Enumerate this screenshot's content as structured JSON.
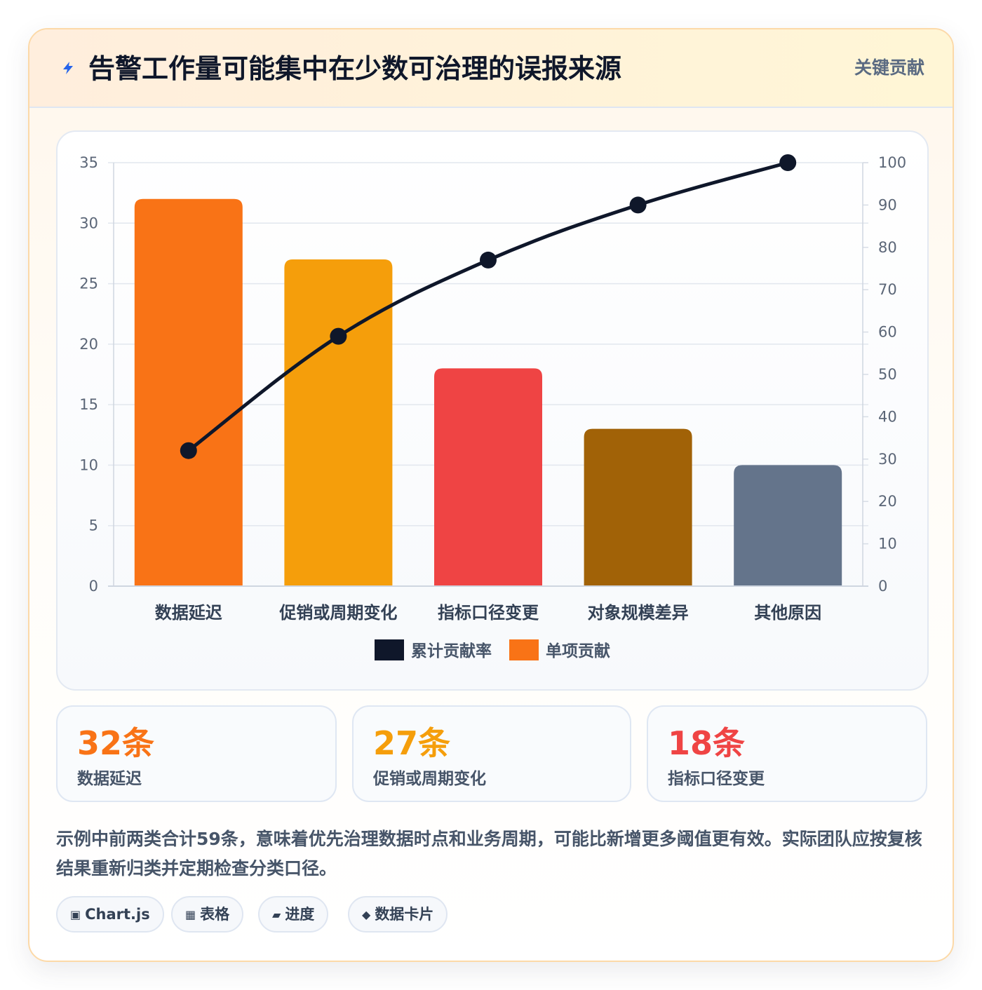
{
  "header": {
    "title": "告警工作量可能集中在少数可治理的误报来源",
    "badge": "关键贡献",
    "icon": "lightning-icon"
  },
  "chart_data": {
    "type": "bar",
    "categories": [
      "数据延迟",
      "促销或周期变化",
      "指标口径变更",
      "对象规模差异",
      "其他原因"
    ],
    "series": [
      {
        "name": "单项贡献",
        "type": "bar",
        "axis": "left",
        "values": [
          32,
          27,
          18,
          13,
          10
        ],
        "colors": [
          "#f97316",
          "#f59e0b",
          "#ef4444",
          "#a16207",
          "#64748b"
        ]
      },
      {
        "name": "累计贡献率",
        "type": "line",
        "axis": "right",
        "values": [
          32,
          59,
          77,
          90,
          100
        ],
        "color": "#0f172a"
      }
    ],
    "y_left": {
      "min": 0,
      "max": 35,
      "ticks": [
        0,
        5,
        10,
        15,
        20,
        25,
        30,
        35
      ]
    },
    "y_right": {
      "min": 0,
      "max": 100,
      "ticks": [
        0,
        10,
        20,
        30,
        40,
        50,
        60,
        70,
        80,
        90,
        100
      ]
    },
    "grid": true,
    "legend": {
      "position": "bottom",
      "items": [
        {
          "label": "累计贡献率",
          "color": "#0f172a"
        },
        {
          "label": "单项贡献",
          "color": "#f97316"
        }
      ]
    }
  },
  "stats": [
    {
      "value": "32条",
      "label": "数据延迟",
      "color": "#f97316"
    },
    {
      "value": "27条",
      "label": "促销或周期变化",
      "color": "#f59e0b"
    },
    {
      "value": "18条",
      "label": "指标口径变更",
      "color": "#ef4444"
    }
  ],
  "note": "示例中前两类合计59条，意味着优先治理数据时点和业务周期，可能比新增更多阈值更有效。实际团队应按复核结果重新归类并定期检查分类口径。",
  "chips": [
    {
      "icon": "▣",
      "icon_name": "chart-icon",
      "label": "Chart.js"
    },
    {
      "icon": "▦",
      "icon_name": "table-icon",
      "label": "表格"
    },
    {
      "icon": "▰",
      "icon_name": "progress-icon",
      "label": "进度"
    },
    {
      "icon": "◆",
      "icon_name": "data-card-icon",
      "label": "数据卡片"
    }
  ]
}
